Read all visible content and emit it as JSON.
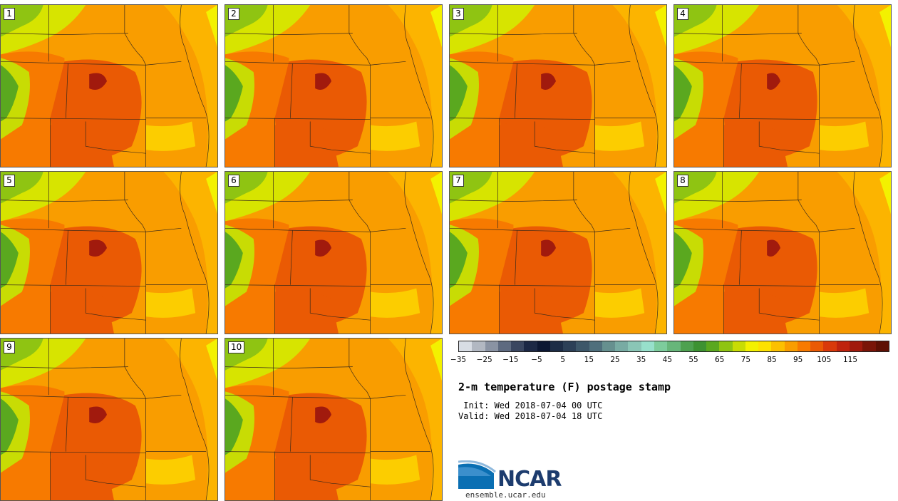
{
  "panels": [
    {
      "label": "1"
    },
    {
      "label": "2"
    },
    {
      "label": "3"
    },
    {
      "label": "4"
    },
    {
      "label": "5"
    },
    {
      "label": "6"
    },
    {
      "label": "7"
    },
    {
      "label": "8"
    },
    {
      "label": "9"
    },
    {
      "label": "10"
    }
  ],
  "colorbar": {
    "colors": [
      "#d8dde4",
      "#b2b8c2",
      "#8a93a3",
      "#5e6a80",
      "#3a4660",
      "#1c2845",
      "#0c1733",
      "#1d2d46",
      "#2c4057",
      "#3d5769",
      "#4f6f7c",
      "#66908f",
      "#78aba3",
      "#8ac6b6",
      "#97e0cb",
      "#7dcc9c",
      "#67b67a",
      "#4ea150",
      "#3d9232",
      "#5aa81f",
      "#8fc412",
      "#c8dc04",
      "#f3f100",
      "#fde100",
      "#fcc000",
      "#f99d00",
      "#f77a00",
      "#ea5a04",
      "#d9390a",
      "#bf230e",
      "#a11a0d",
      "#7a1508",
      "#5e1004"
    ],
    "ticks": [
      "−35",
      "−25",
      "−15",
      "−5",
      "5",
      "15",
      "25",
      "35",
      "45",
      "55",
      "65",
      "75",
      "85",
      "95",
      "105",
      "115"
    ]
  },
  "title": "2-m temperature (F) postage stamp",
  "init": " Init: Wed 2018-07-04 00 UTC",
  "valid": "Valid: Wed 2018-07-04 18 UTC",
  "logo": {
    "text": "NCAR",
    "site": "ensemble.ucar.edu"
  }
}
